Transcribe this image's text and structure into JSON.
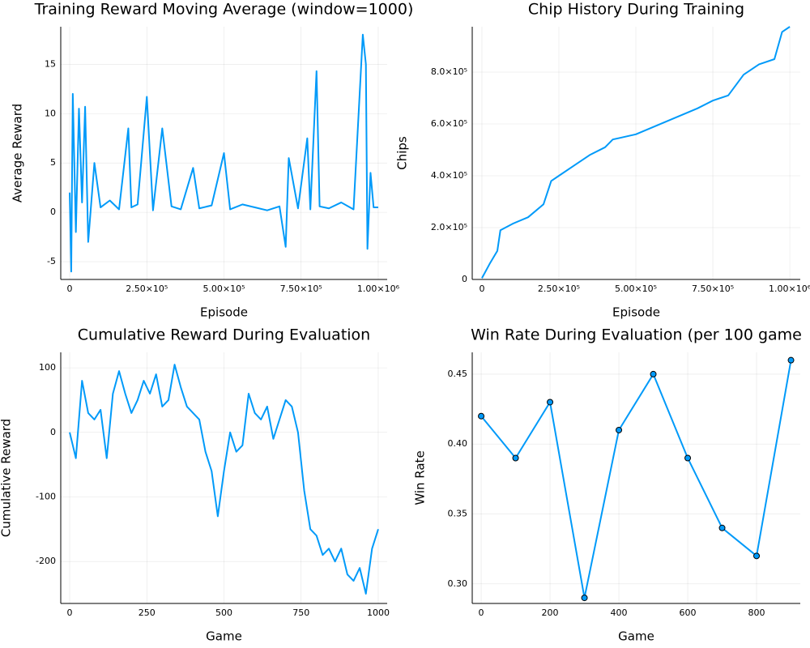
{
  "chart_data": [
    {
      "type": "line",
      "title": "Training Reward Moving Average (window=1000)",
      "xlabel": "Episode",
      "ylabel": "Average Reward",
      "grid": true,
      "series": [
        {
          "color": "#009af9",
          "x": [
            0,
            5000,
            10000,
            20000,
            30000,
            40000,
            50000,
            60000,
            80000,
            100000,
            130000,
            160000,
            190000,
            200000,
            220000,
            250000,
            270000,
            300000,
            330000,
            360000,
            400000,
            420000,
            460000,
            500000,
            520000,
            560000,
            600000,
            640000,
            680000,
            700000,
            710000,
            740000,
            770000,
            780000,
            800000,
            810000,
            840000,
            880000,
            920000,
            950000,
            960000,
            965000,
            975000,
            985000,
            1000000
          ],
          "values": [
            2,
            -6,
            12,
            -2,
            10.5,
            1,
            10.7,
            -3,
            5,
            0.5,
            1.2,
            0.3,
            8.5,
            0.5,
            0.8,
            11.7,
            0.2,
            8.5,
            0.6,
            0.3,
            4.5,
            0.4,
            0.7,
            6,
            0.3,
            0.8,
            0.5,
            0.2,
            0.6,
            -3.5,
            5.5,
            0.4,
            7.5,
            0.3,
            14.3,
            0.6,
            0.4,
            1,
            0.3,
            18,
            15,
            -3.7,
            4,
            0.5,
            0.5
          ]
        }
      ],
      "xlim": [
        -29000,
        1029000
      ],
      "ylim": [
        -6.8,
        18.8
      ],
      "xticks": [
        0,
        {
          "value": 250000,
          "label": "2.50×10⁵"
        },
        {
          "value": 500000,
          "label": "5.00×10⁵"
        },
        {
          "value": 750000,
          "label": "7.50×10⁵"
        },
        {
          "value": 1000000,
          "label": "1.00×10⁶"
        }
      ],
      "yticks": [
        -5,
        0,
        5,
        10,
        15
      ]
    },
    {
      "type": "line",
      "title": "Chip History During Training",
      "xlabel": "Episode",
      "ylabel": "Chips",
      "grid": true,
      "series": [
        {
          "color": "#009af9",
          "x": [
            0,
            25000,
            50000,
            60000,
            100000,
            150000,
            200000,
            225000,
            250000,
            300000,
            350000,
            400000,
            425000,
            500000,
            600000,
            700000,
            750000,
            800000,
            850000,
            900000,
            950000,
            975000,
            1000000
          ],
          "values": [
            5000,
            60000,
            110000,
            190000,
            215000,
            240000,
            290000,
            380000,
            400000,
            440000,
            480000,
            510000,
            540000,
            560000,
            610000,
            660000,
            690000,
            710000,
            790000,
            830000,
            850000,
            955000,
            975000
          ]
        }
      ],
      "xlim": [
        -31500,
        1034000
      ],
      "ylim": [
        0,
        975000
      ],
      "xticks": [
        0,
        {
          "value": 250000,
          "label": "2.50×10⁵"
        },
        {
          "value": 500000,
          "label": "5.00×10⁵"
        },
        {
          "value": 750000,
          "label": "7.50×10⁵"
        },
        {
          "value": 1000000,
          "label": "1.00×10⁶"
        }
      ],
      "yticks": [
        0,
        {
          "value": 200000,
          "label": "2.0×10⁵"
        },
        {
          "value": 400000,
          "label": "4.0×10⁵"
        },
        {
          "value": 600000,
          "label": "6.0×10⁵"
        },
        {
          "value": 800000,
          "label": "8.0×10⁵"
        }
      ]
    },
    {
      "type": "line",
      "title": "Cumulative Reward During Evaluation",
      "xlabel": "Game",
      "ylabel": "Cumulative Reward",
      "grid": true,
      "series": [
        {
          "color": "#009af9",
          "x": [
            0,
            20,
            40,
            60,
            80,
            100,
            120,
            140,
            160,
            180,
            200,
            220,
            240,
            260,
            280,
            300,
            320,
            340,
            360,
            380,
            400,
            420,
            440,
            460,
            480,
            500,
            520,
            540,
            560,
            580,
            600,
            620,
            640,
            660,
            680,
            700,
            720,
            740,
            760,
            780,
            800,
            820,
            840,
            860,
            880,
            900,
            920,
            940,
            960,
            980,
            1000
          ],
          "values": [
            0,
            -40,
            80,
            30,
            20,
            35,
            -40,
            60,
            95,
            60,
            30,
            50,
            80,
            60,
            90,
            40,
            50,
            105,
            70,
            40,
            30,
            20,
            -30,
            -60,
            -130,
            -60,
            0,
            -30,
            -20,
            60,
            30,
            20,
            40,
            -10,
            20,
            50,
            40,
            0,
            -90,
            -150,
            -160,
            -190,
            -180,
            -200,
            -180,
            -220,
            -230,
            -210,
            -250,
            -180,
            -150
          ]
        }
      ],
      "xlim": [
        -29,
        1029
      ],
      "ylim": [
        -265,
        124
      ],
      "xticks": [
        0,
        250,
        500,
        750,
        1000
      ],
      "yticks": [
        -200,
        -100,
        0,
        100
      ]
    },
    {
      "type": "line",
      "title": "Win Rate During Evaluation (per 100 game",
      "xlabel": "Game",
      "ylabel": "Win Rate",
      "grid": true,
      "markers": true,
      "series": [
        {
          "color": "#009af9",
          "x": [
            0,
            100,
            200,
            300,
            400,
            500,
            600,
            700,
            800,
            900
          ],
          "values": [
            0.42,
            0.39,
            0.43,
            0.29,
            0.41,
            0.45,
            0.39,
            0.34,
            0.32,
            0.46
          ]
        }
      ],
      "xlim": [
        -26,
        927
      ],
      "ylim": [
        0.286,
        0.4656
      ],
      "xticks": [
        0,
        200,
        400,
        600,
        800
      ],
      "yticks": [
        {
          "value": 0.3,
          "label": "0.30"
        },
        {
          "value": 0.35,
          "label": "0.35"
        },
        {
          "value": 0.4,
          "label": "0.40"
        },
        {
          "value": 0.45,
          "label": "0.45"
        }
      ]
    }
  ]
}
